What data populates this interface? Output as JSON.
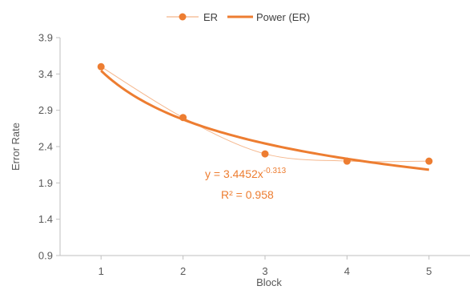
{
  "chart_data": {
    "type": "scatter",
    "title": "",
    "xlabel": "Block",
    "ylabel": "Error Rate",
    "xlim": [
      0.5,
      5.5
    ],
    "ylim": [
      0.9,
      3.9
    ],
    "x_ticks": [
      1,
      2,
      3,
      4,
      5
    ],
    "y_ticks": [
      0.9,
      1.4,
      1.9,
      2.4,
      2.9,
      3.4,
      3.9
    ],
    "grid": false,
    "legend_position": "top",
    "series": [
      {
        "name": "ER",
        "x": [
          1,
          2,
          3,
          4,
          5
        ],
        "y": [
          3.5,
          2.8,
          2.3,
          2.2,
          2.2
        ],
        "marker": "circle",
        "line": "smooth-thin",
        "color": "#ED7D31"
      },
      {
        "name": "Power (ER)",
        "type": "trendline",
        "model": "power",
        "a": 3.4452,
        "b": -0.313,
        "x_range": [
          1,
          5
        ],
        "color": "#ED7D31"
      }
    ],
    "annotations": {
      "equation_prefix": "y = 3.4452x",
      "equation_exponent": "-0.313",
      "r_squared": "R² = 0.958"
    }
  },
  "colors": {
    "series": "#ED7D31",
    "axis": "#BFBFBF",
    "text": "#595959"
  }
}
